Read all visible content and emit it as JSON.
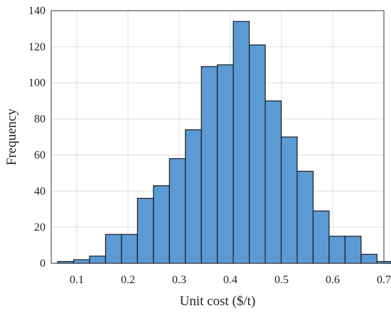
{
  "chart_data": {
    "type": "bar",
    "title": "",
    "xlabel": "Unit cost ($/t)",
    "ylabel": "Frequency",
    "xlim": [
      0.05,
      0.7
    ],
    "ylim": [
      0,
      140
    ],
    "grid": true,
    "bar_color": "#5b9bd5",
    "edge_color": "#1a1a1a",
    "bin_width": 0.0312,
    "bin_edges": [
      0.0626,
      0.0938,
      0.125,
      0.1562,
      0.1874,
      0.2186,
      0.2498,
      0.281,
      0.3122,
      0.3434,
      0.3746,
      0.4058,
      0.437,
      0.4682,
      0.4994,
      0.5306,
      0.5618,
      0.593,
      0.6242,
      0.6554,
      0.6866
    ],
    "values": [
      1,
      2,
      4,
      16,
      16,
      36,
      43,
      58,
      74,
      109,
      110,
      134,
      121,
      90,
      70,
      51,
      29,
      15,
      15,
      5,
      1
    ],
    "x_ticks": [
      0.1,
      0.2,
      0.3,
      0.4,
      0.5,
      0.6,
      0.7
    ],
    "x_tick_labels": [
      "0.1",
      "0.2",
      "0.3",
      "0.4",
      "0.5",
      "0.6",
      "0.7"
    ],
    "y_ticks": [
      0,
      20,
      40,
      60,
      80,
      100,
      120,
      140
    ],
    "y_tick_labels": [
      "0",
      "20",
      "40",
      "60",
      "80",
      "100",
      "120",
      "140"
    ]
  }
}
